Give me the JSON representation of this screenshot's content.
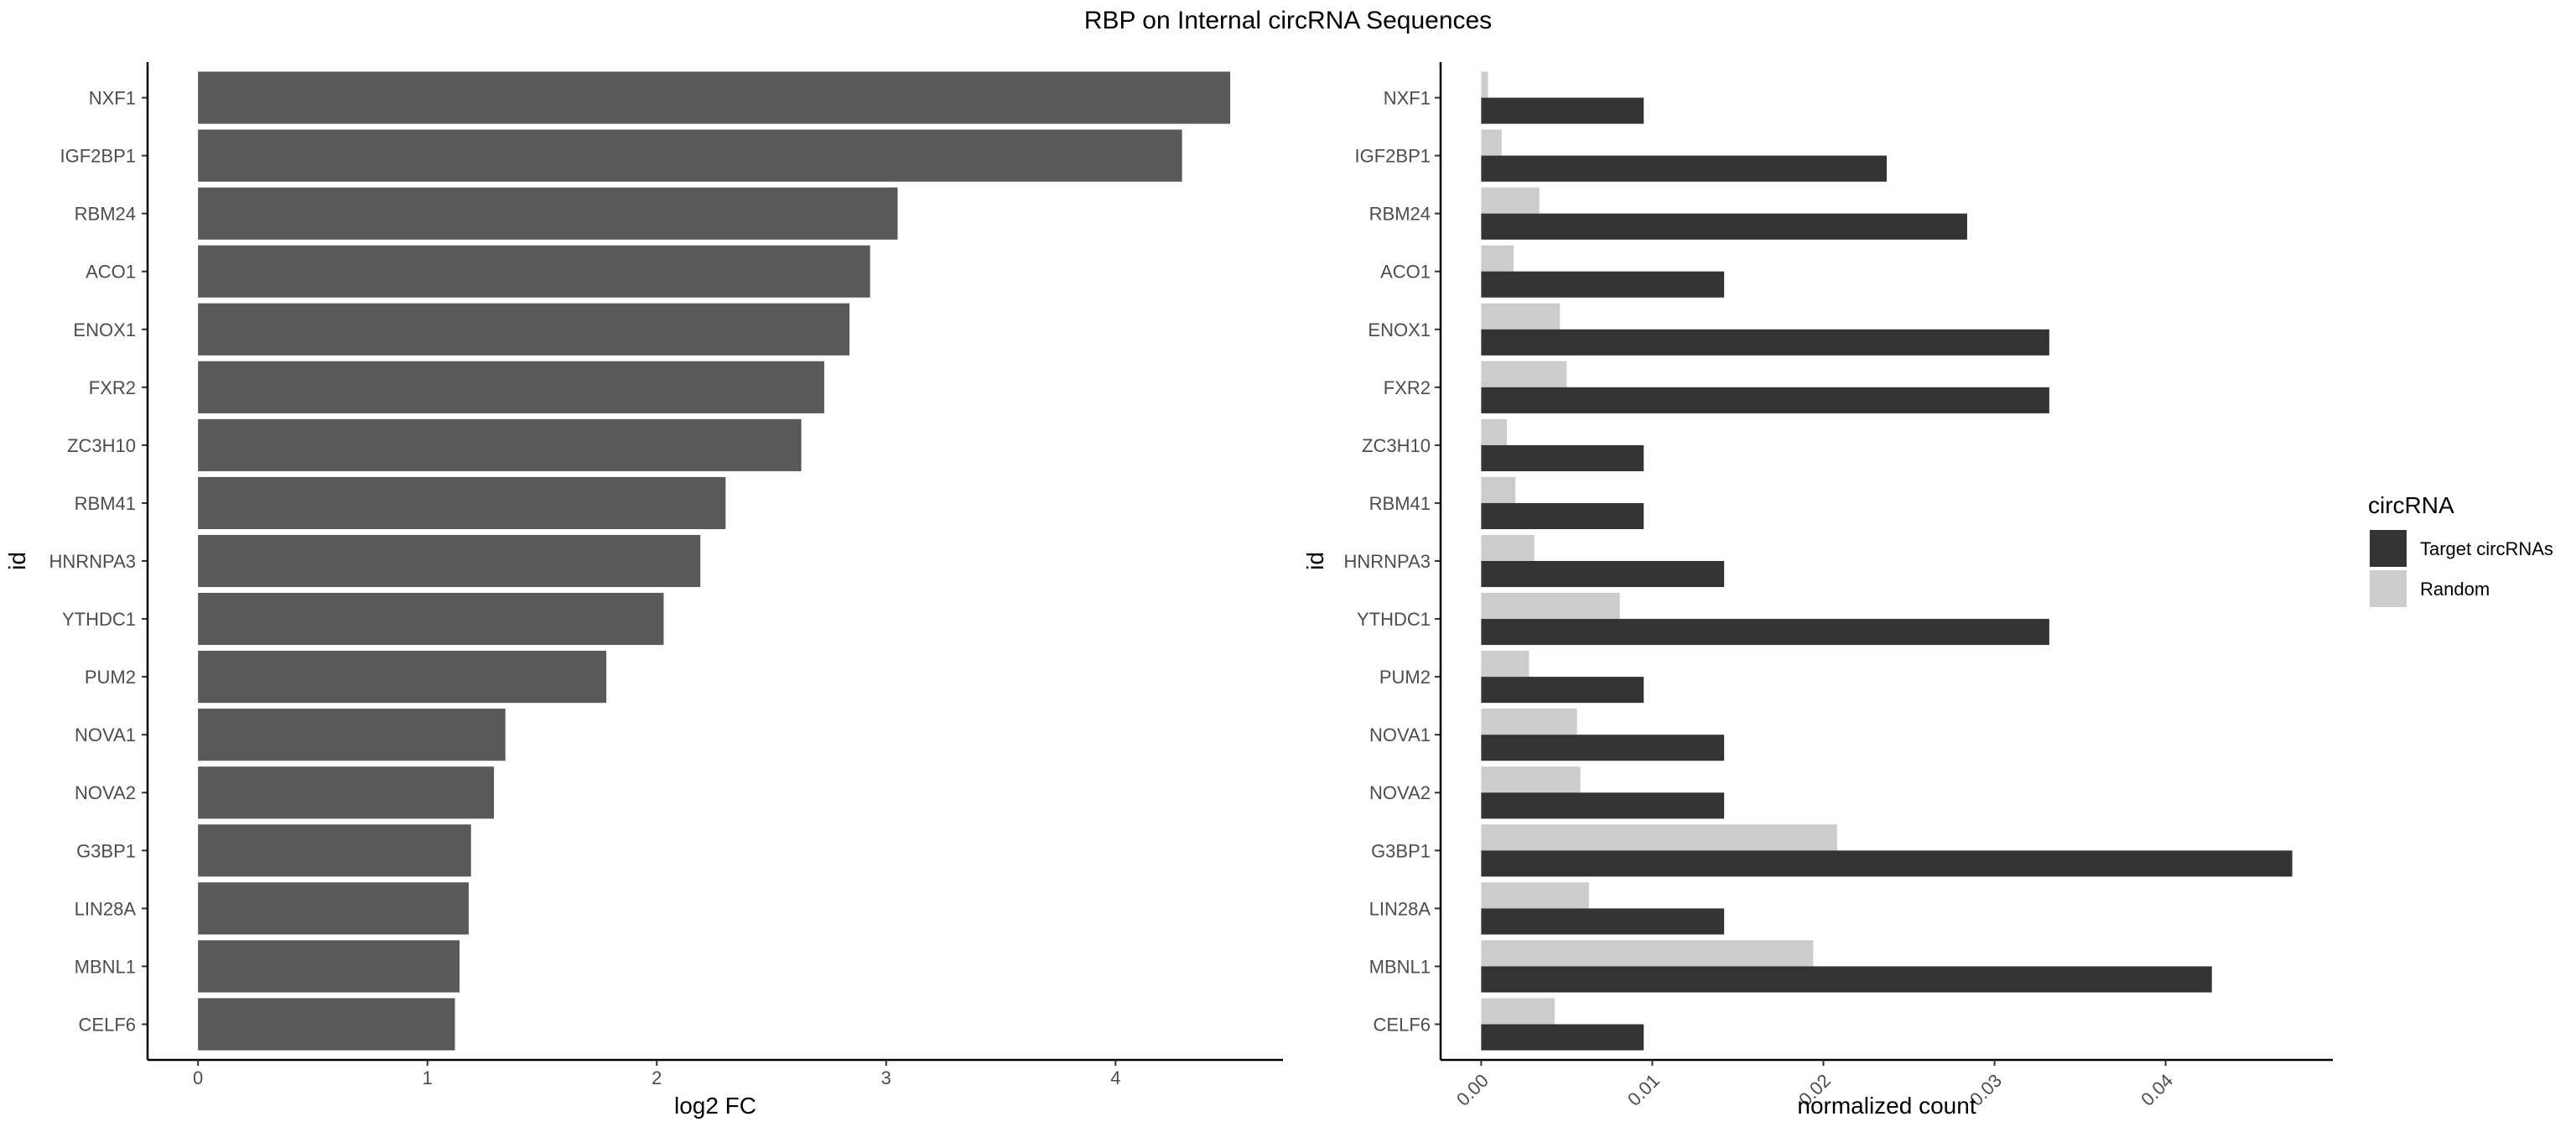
{
  "title": "RBP on Internal circRNA Sequences",
  "chart_data": [
    {
      "type": "bar",
      "orientation": "horizontal",
      "categories": [
        "NXF1",
        "IGF2BP1",
        "RBM24",
        "ACO1",
        "ENOX1",
        "FXR2",
        "ZC3H10",
        "RBM41",
        "HNRNPA3",
        "YTHDC1",
        "PUM2",
        "NOVA1",
        "NOVA2",
        "G3BP1",
        "LIN28A",
        "MBNL1",
        "CELF6"
      ],
      "values": [
        4.5,
        4.29,
        3.05,
        2.93,
        2.84,
        2.73,
        2.63,
        2.3,
        2.19,
        2.03,
        1.78,
        1.34,
        1.29,
        1.19,
        1.18,
        1.14,
        1.12
      ],
      "xlabel": "log2 FC",
      "ylabel": "id",
      "xlim": [
        -0.22,
        4.73
      ],
      "xticks": [
        0,
        1,
        2,
        3,
        4
      ],
      "grid": false,
      "color": "#595959"
    },
    {
      "type": "bar",
      "orientation": "horizontal",
      "categories": [
        "NXF1",
        "IGF2BP1",
        "RBM24",
        "ACO1",
        "ENOX1",
        "FXR2",
        "ZC3H10",
        "RBM41",
        "HNRNPA3",
        "YTHDC1",
        "PUM2",
        "NOVA1",
        "NOVA2",
        "G3BP1",
        "LIN28A",
        "MBNL1",
        "CELF6"
      ],
      "series": [
        {
          "name": "Target circRNAs",
          "color": "#333333",
          "values": [
            0.0095,
            0.0237,
            0.0284,
            0.0142,
            0.0332,
            0.0332,
            0.0095,
            0.0095,
            0.0142,
            0.0332,
            0.0095,
            0.0142,
            0.0142,
            0.0474,
            0.0142,
            0.0427,
            0.0095
          ]
        },
        {
          "name": "Random",
          "color": "#cccccc",
          "values": [
            0.0004,
            0.0012,
            0.0034,
            0.0019,
            0.0046,
            0.005,
            0.0015,
            0.002,
            0.0031,
            0.0081,
            0.0028,
            0.0056,
            0.0058,
            0.0208,
            0.0063,
            0.0194,
            0.0043
          ]
        }
      ],
      "xlabel": "normalized count",
      "ylabel": "id",
      "xlim": [
        -0.00237,
        0.04977
      ],
      "xticks": [
        0.0,
        0.01,
        0.02,
        0.03,
        0.04
      ],
      "xtick_labels": [
        "0.00",
        "0.01",
        "0.02",
        "0.03",
        "0.04"
      ],
      "legend_title": "circRNA",
      "legend_position": "right",
      "grid": false
    }
  ]
}
